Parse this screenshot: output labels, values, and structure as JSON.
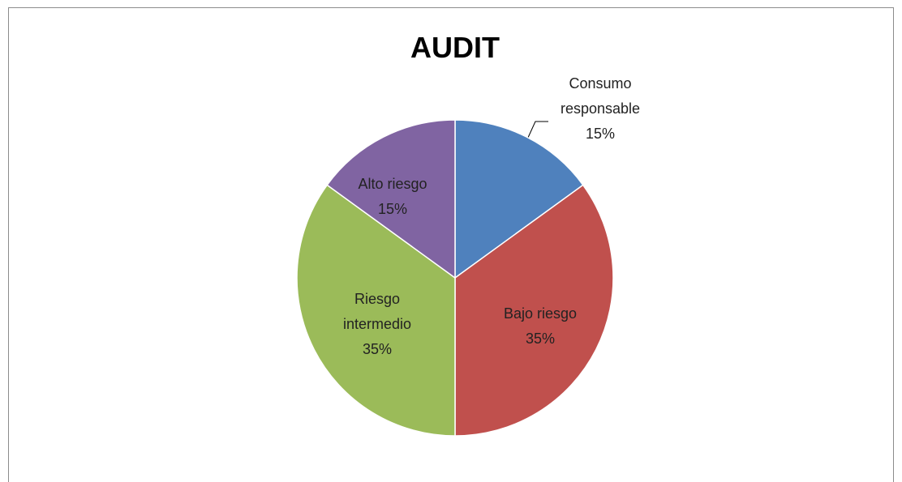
{
  "chart_data": {
    "type": "pie",
    "title": "AUDIT",
    "categories": [
      "Consumo responsable",
      "Bajo riesgo",
      "Riesgo intermedio",
      "Alto riesgo"
    ],
    "values": [
      15,
      35,
      35,
      15
    ],
    "value_labels": [
      "15%",
      "35%",
      "35%",
      "15%"
    ],
    "colors": [
      "#4f81bd",
      "#c0504d",
      "#9bbb59",
      "#8064a2"
    ]
  }
}
